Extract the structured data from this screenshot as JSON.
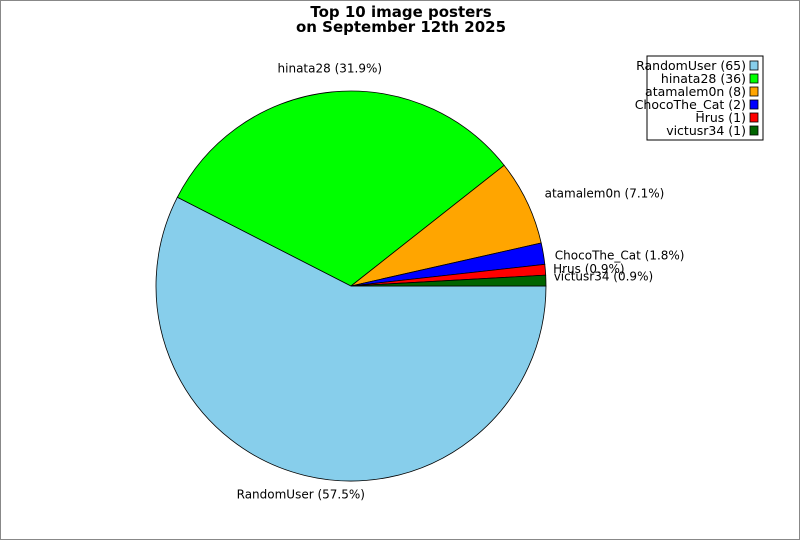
{
  "chart_data": {
    "type": "pie",
    "title_lines": [
      "Top 10 image posters",
      "on September 12th 2025"
    ],
    "slices": [
      {
        "name": "RandomUser",
        "value": 65,
        "percent_label": "RandomUser (57.5%)",
        "legend_label": "RandomUser (65)",
        "color": "#87CEEB"
      },
      {
        "name": "hinata28",
        "value": 36,
        "percent_label": "hinata28 (31.9%)",
        "legend_label": "hinata28 (36)",
        "color": "#00FF00"
      },
      {
        "name": "atamalem0n",
        "value": 8,
        "percent_label": "atamalem0n (7.1%)",
        "legend_label": "atamalem0n (8)",
        "color": "#FFA500"
      },
      {
        "name": "ChocoThe_Cat",
        "value": 2,
        "percent_label": "ChocoThe_Cat (1.8%)",
        "legend_label": "ChocoThe_Cat (2)",
        "color": "#0000FF"
      },
      {
        "name": "Hrus",
        "value": 1,
        "percent_label": "Hrus (0.9%)",
        "legend_label": "Hrus (1)",
        "color": "#FF0000"
      },
      {
        "name": "victusr34",
        "value": 1,
        "percent_label": "victusr34 (0.9%)",
        "legend_label": "victusr34 (1)",
        "color": "#006400"
      }
    ],
    "start_angle": "3 o'clock",
    "direction": "clockwise",
    "legend_position": "top-right"
  }
}
